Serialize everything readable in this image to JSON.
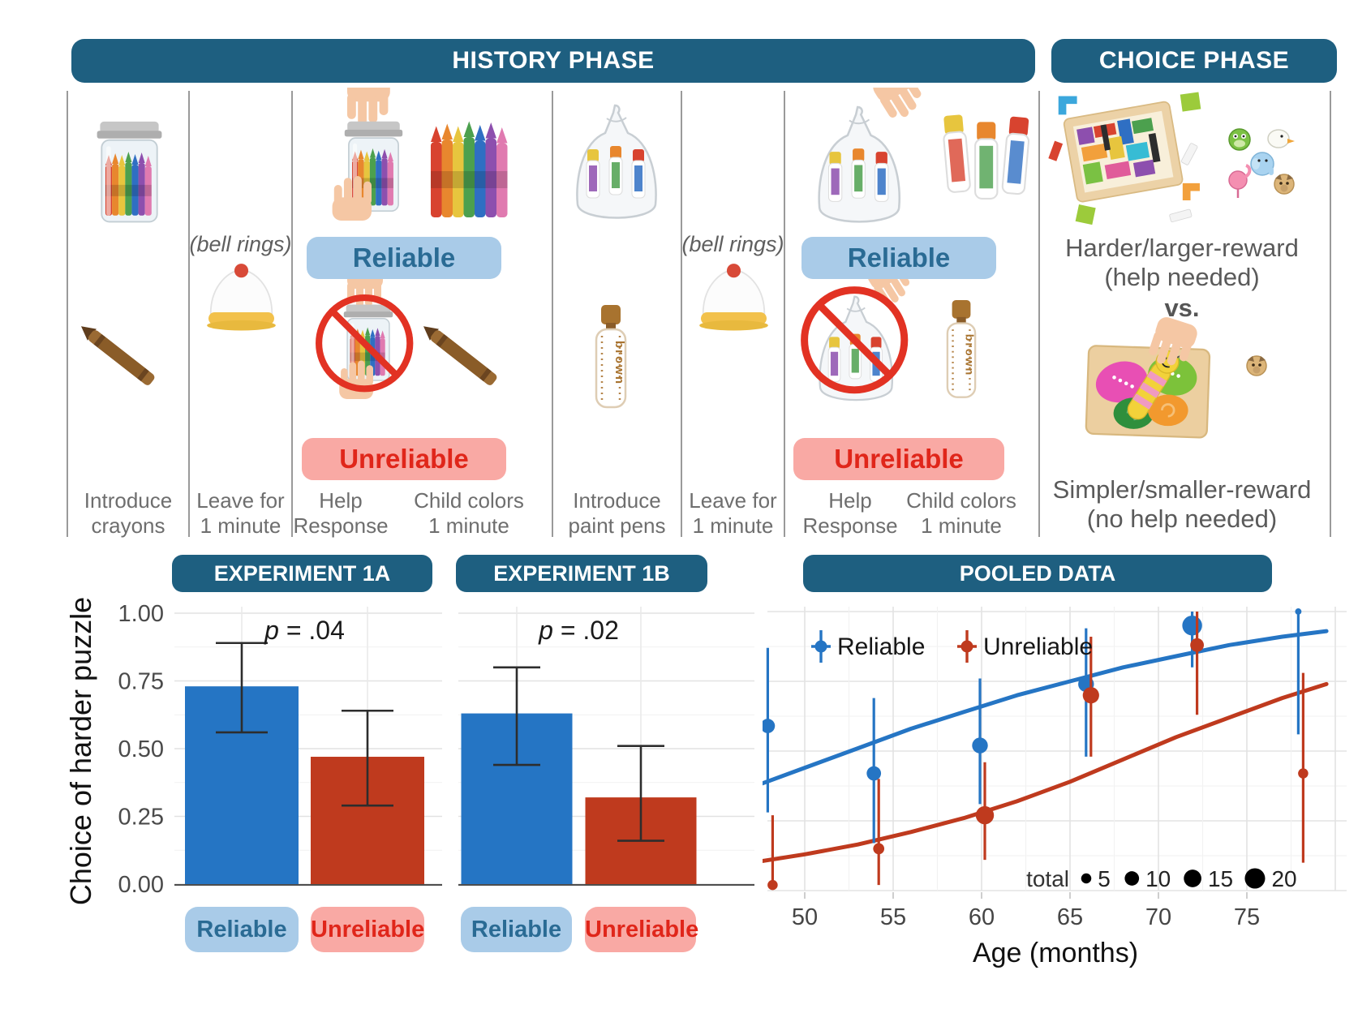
{
  "palette": {
    "header_teal": "#1e5f80",
    "reliable_blue": "#2575c4",
    "unreliable_red": "#bf3a1e",
    "reliable_pill_bg": "#a9cbe8",
    "reliable_pill_text": "#2a6b94",
    "unreliable_pill_bg": "#f9a9a4",
    "unreliable_pill_text": "#e0261a",
    "prohibition_red": "#e23223"
  },
  "figure": {
    "phase_headers": {
      "history": "HISTORY PHASE",
      "choice": "CHOICE PHASE"
    },
    "steps": {
      "s1": {
        "caption1": "Introduce",
        "caption2": "crayons"
      },
      "s2": {
        "note": "(bell rings)",
        "caption1": "Leave for",
        "caption2": "1 minute"
      },
      "s3": {
        "reliable": "Reliable",
        "unreliable": "Unreliable",
        "help1": "Help",
        "help2": "Response",
        "colors1": "Child colors",
        "colors2": "1 minute"
      },
      "s4": {
        "caption1": "Introduce",
        "caption2": "paint pens"
      },
      "s5": {
        "note": "(bell rings)",
        "caption1": "Leave for",
        "caption2": "1 minute"
      },
      "s6": {
        "reliable": "Reliable",
        "unreliable": "Unreliable",
        "help1": "Help",
        "help2": "Response",
        "colors1": "Child colors",
        "colors2": "1 minute"
      }
    },
    "choice": {
      "harder1": "Harder/larger-reward",
      "harder2": "(help needed)",
      "vs": "vs.",
      "simpler1": "Simpler/smaller-reward",
      "simpler2": "(no help needed)"
    },
    "illustrations": [
      "crayon-jar",
      "single-crayon",
      "service-bell",
      "hands-opening-jar",
      "crayon-cup",
      "no-help-jar",
      "paint-pens-bag",
      "brown-paint-pen",
      "hand-opening-bag",
      "paint-pens-group",
      "no-help-bag",
      "tangram-puzzle",
      "animal-stickers",
      "butterfly-puzzle",
      "pug-sticker"
    ]
  },
  "chart_data": [
    {
      "type": "bar",
      "title": "EXPERIMENT 1A",
      "p_label": {
        "sym": "p",
        "rest": " = .04"
      },
      "ylabel": "Choice of harder puzzle",
      "ylim": [
        0,
        1
      ],
      "yticks": [
        0,
        0.25,
        0.5,
        0.75,
        1.0
      ],
      "categories": [
        "Reliable",
        "Unreliable"
      ],
      "values": [
        0.73,
        0.47
      ],
      "ci_low": [
        0.56,
        0.29
      ],
      "ci_high": [
        0.89,
        0.64
      ],
      "colors": [
        "#2575c4",
        "#bf3a1e"
      ]
    },
    {
      "type": "bar",
      "title": "EXPERIMENT 1B",
      "p_label": {
        "sym": "p",
        "rest": " = .02"
      },
      "ylabel": "Choice of harder puzzle",
      "ylim": [
        0,
        1
      ],
      "yticks": [
        0,
        0.25,
        0.5,
        0.75,
        1.0
      ],
      "categories": [
        "Reliable",
        "Unreliable"
      ],
      "values": [
        0.63,
        0.32
      ],
      "ci_low": [
        0.44,
        0.16
      ],
      "ci_high": [
        0.8,
        0.51
      ],
      "colors": [
        "#2575c4",
        "#bf3a1e"
      ]
    },
    {
      "type": "scatter",
      "title": "POOLED DATA",
      "xlabel": "Age (months)",
      "xticks": [
        50,
        55,
        60,
        65,
        70,
        75
      ],
      "xlim": [
        46.8,
        80.6
      ],
      "ylim": [
        0,
        1
      ],
      "grid": true,
      "legend_position": "top-left-inside",
      "size_legend": {
        "label": "total",
        "values": [
          5,
          10,
          15,
          20
        ]
      },
      "series": [
        {
          "name": "Reliable",
          "color": "#2575c4",
          "points": [
            {
              "x": 48,
              "y": 0.59,
              "lo": 0.28,
              "hi": 0.87,
              "total": 10
            },
            {
              "x": 54,
              "y": 0.42,
              "lo": 0.17,
              "hi": 0.69,
              "total": 10
            },
            {
              "x": 60,
              "y": 0.52,
              "lo": 0.31,
              "hi": 0.76,
              "total": 12
            },
            {
              "x": 66,
              "y": 0.74,
              "lo": 0.48,
              "hi": 0.94,
              "total": 12
            },
            {
              "x": 72,
              "y": 0.95,
              "lo": 0.8,
              "hi": 1.0,
              "total": 19
            },
            {
              "x": 78,
              "y": 1.0,
              "lo": 0.56,
              "hi": 1.0,
              "total": 2
            }
          ],
          "curve": [
            [
              47,
              0.37
            ],
            [
              50,
              0.44
            ],
            [
              53,
              0.51
            ],
            [
              56,
              0.58
            ],
            [
              59,
              0.64
            ],
            [
              62,
              0.7
            ],
            [
              65,
              0.75
            ],
            [
              68,
              0.8
            ],
            [
              71,
              0.84
            ],
            [
              74,
              0.88
            ],
            [
              77,
              0.91
            ],
            [
              79.5,
              0.93
            ]
          ]
        },
        {
          "name": "Unreliable",
          "color": "#bf3a1e",
          "points": [
            {
              "x": 48,
              "y": 0.02,
              "lo": 0.02,
              "hi": 0.27,
              "total": 5
            },
            {
              "x": 54,
              "y": 0.15,
              "lo": 0.02,
              "hi": 0.4,
              "total": 6
            },
            {
              "x": 60,
              "y": 0.27,
              "lo": 0.11,
              "hi": 0.46,
              "total": 16
            },
            {
              "x": 66,
              "y": 0.7,
              "lo": 0.48,
              "hi": 0.91,
              "total": 13
            },
            {
              "x": 72,
              "y": 0.88,
              "lo": 0.63,
              "hi": 1.0,
              "total": 9
            },
            {
              "x": 78,
              "y": 0.42,
              "lo": 0.1,
              "hi": 0.78,
              "total": 5
            }
          ],
          "curve": [
            [
              47,
              0.1
            ],
            [
              50,
              0.13
            ],
            [
              53,
              0.165
            ],
            [
              56,
              0.21
            ],
            [
              59,
              0.26
            ],
            [
              62,
              0.32
            ],
            [
              65,
              0.39
            ],
            [
              68,
              0.47
            ],
            [
              71,
              0.55
            ],
            [
              74,
              0.62
            ],
            [
              77,
              0.69
            ],
            [
              79.5,
              0.74
            ]
          ]
        }
      ]
    }
  ]
}
